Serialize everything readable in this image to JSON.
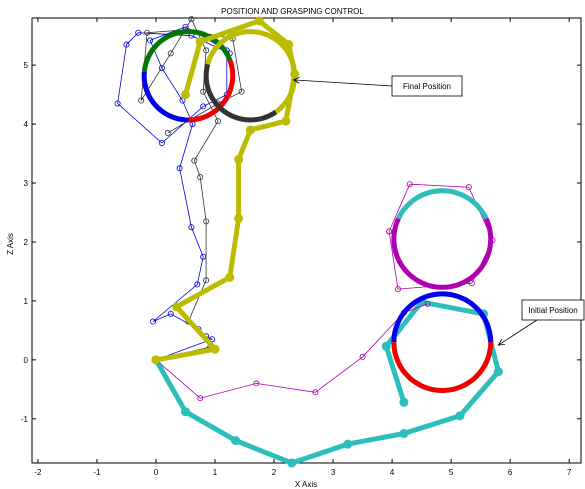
{
  "chart_data": {
    "type": "line",
    "title": "POSITION AND GRASPING CONTROL",
    "xlabel": "X Axis",
    "ylabel": "Z Axis",
    "xlim": [
      -2.1,
      7.2
    ],
    "ylim": [
      -1.75,
      5.8
    ],
    "xticks": [
      -2,
      -1,
      0,
      1,
      2,
      3,
      4,
      5,
      6,
      7
    ],
    "yticks": [
      -1,
      0,
      1,
      2,
      3,
      4,
      5
    ],
    "grid": false,
    "annotations": [
      {
        "text": "Final Position",
        "point": [
          2.33,
          4.75
        ]
      },
      {
        "text": "Initial Position",
        "point": [
          5.8,
          0.25
        ]
      }
    ],
    "series": [
      {
        "style": "arm",
        "color": "#2dbdbd",
        "points": [
          [
            0,
            0
          ],
          [
            0.5,
            -0.88
          ],
          [
            1.35,
            -1.37
          ],
          [
            2.3,
            -1.75
          ],
          [
            3.25,
            -1.43
          ],
          [
            4.2,
            -1.25
          ],
          [
            5.15,
            -0.95
          ],
          [
            5.8,
            -0.2
          ],
          [
            5.55,
            0.78
          ],
          [
            4.5,
            0.98
          ],
          [
            3.9,
            0.23
          ],
          [
            4.2,
            -0.72
          ]
        ]
      },
      {
        "style": "thin",
        "color": "#b000b0",
        "points": [
          [
            0,
            0
          ],
          [
            0.75,
            -0.65
          ],
          [
            1.7,
            -0.4
          ],
          [
            2.7,
            -0.55
          ],
          [
            3.5,
            0.05
          ],
          [
            4.2,
            0.8
          ],
          [
            4.6,
            0.95
          ]
        ]
      },
      {
        "style": "thin",
        "color": "#b000b0",
        "points": [
          [
            3.95,
            2.18
          ],
          [
            4.3,
            2.98
          ],
          [
            5.3,
            2.93
          ],
          [
            5.7,
            2.03
          ],
          [
            5.35,
            1.3
          ],
          [
            4.1,
            1.2
          ],
          [
            3.95,
            2.18
          ]
        ]
      },
      {
        "style": "circle",
        "center": [
          4.85,
          0.3
        ],
        "radius": 0.82,
        "arcs": [
          {
            "from": 180,
            "to": 0,
            "color": "#0000ee"
          },
          {
            "from": 0,
            "to": -180,
            "color": "#ee0000"
          }
        ]
      },
      {
        "style": "circle",
        "center": [
          4.85,
          2.05
        ],
        "radius": 0.82,
        "arcs": [
          {
            "from": 155,
            "to": 25,
            "color": "#2dbdbd"
          },
          {
            "from": 25,
            "to": -25,
            "color": "#b000b0"
          },
          {
            "from": -25,
            "to": -155,
            "color": "#b000b0"
          },
          {
            "from": -155,
            "to": -205,
            "color": "#b000b0"
          }
        ]
      },
      {
        "style": "thin",
        "color": "#0000dd",
        "points": [
          [
            0,
            0
          ],
          [
            0.95,
            0.35
          ],
          [
            0.85,
            0.4
          ],
          [
            0.72,
            0.52
          ],
          [
            0.25,
            0.78
          ],
          [
            -0.05,
            0.65
          ],
          [
            0.7,
            1.28
          ],
          [
            0.8,
            1.75
          ],
          [
            0.6,
            2.25
          ],
          [
            0.4,
            3.25
          ],
          [
            0.62,
            4.0
          ],
          [
            0.45,
            4.4
          ],
          [
            0.1,
            4.95
          ],
          [
            -0.1,
            5.42
          ],
          [
            0.5,
            5.65
          ],
          [
            1.2,
            5.25
          ],
          [
            1.2,
            4.5
          ],
          [
            0.8,
            4.3
          ],
          [
            0.1,
            3.68
          ],
          [
            -0.65,
            4.35
          ],
          [
            -0.5,
            5.35
          ],
          [
            -0.3,
            5.55
          ],
          [
            0.6,
            5.5
          ],
          [
            1.25,
            5.2
          ]
        ]
      },
      {
        "style": "thin",
        "color": "#333333",
        "points": [
          [
            0,
            0
          ],
          [
            0.92,
            0.22
          ],
          [
            0.55,
            0.65
          ],
          [
            0.85,
            1.35
          ],
          [
            0.85,
            2.35
          ],
          [
            0.75,
            3.1
          ],
          [
            0.65,
            3.38
          ],
          [
            1.05,
            4.05
          ],
          [
            0.8,
            4.55
          ],
          [
            0.85,
            5.25
          ],
          [
            0.6,
            5.78
          ],
          [
            0.25,
            5.2
          ],
          [
            -0.25,
            4.4
          ],
          [
            -0.15,
            5.55
          ],
          [
            0.5,
            5.6
          ],
          [
            1.3,
            5.45
          ],
          [
            1.45,
            4.55
          ],
          [
            1.05,
            4.35
          ],
          [
            0.2,
            3.85
          ]
        ]
      },
      {
        "style": "circle",
        "center": [
          0.55,
          4.82
        ],
        "radius": 0.75,
        "arcs": [
          {
            "from": 175,
            "to": 20,
            "color": "#007700"
          },
          {
            "from": 20,
            "to": -90,
            "color": "#ee0000"
          },
          {
            "from": -90,
            "to": -185,
            "color": "#0000ee"
          }
        ]
      },
      {
        "style": "circle",
        "center": [
          1.6,
          4.82
        ],
        "radius": 0.75,
        "arcs": [
          {
            "from": 165,
            "to": 10,
            "color": "#bbbb00"
          },
          {
            "from": 10,
            "to": -55,
            "color": "#bbbb00"
          },
          {
            "from": -55,
            "to": -195,
            "color": "#333333"
          }
        ]
      },
      {
        "style": "arm",
        "color": "#bbbb00",
        "points": [
          [
            0,
            0
          ],
          [
            1.0,
            0.18
          ],
          [
            0.35,
            0.9
          ],
          [
            1.25,
            1.4
          ],
          [
            1.4,
            2.4
          ],
          [
            1.4,
            3.4
          ],
          [
            1.6,
            3.9
          ],
          [
            2.2,
            4.05
          ],
          [
            2.35,
            4.85
          ],
          [
            2.25,
            5.35
          ],
          [
            1.75,
            5.75
          ],
          [
            0.75,
            5.4
          ],
          [
            0.5,
            4.5
          ]
        ]
      }
    ]
  }
}
